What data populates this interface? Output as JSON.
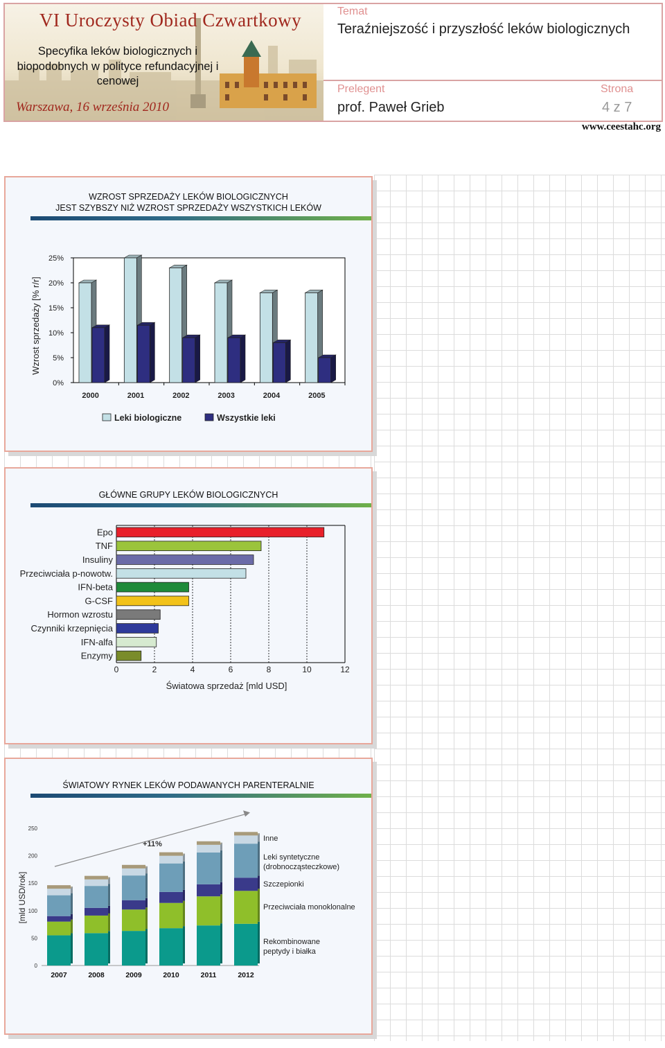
{
  "header": {
    "event_title": "VI Uroczysty Obiad Czwartkowy",
    "topic": "Specyfika leków biologicznych i biopodobnych w polityce refundacyjnej i cenowej",
    "place_date": "Warszawa, 16 września 2010",
    "temat_label": "Temat",
    "temat_value": "Teraźniejszość i przyszłość leków biologicznych",
    "prelegent_label": "Prelegent",
    "prelegent_value": "prof. Paweł Grieb",
    "strona_label": "Strona",
    "strona_value": "4 z 7",
    "url": "www.ceestahc.org"
  },
  "colors": {
    "accent": "#e09090",
    "border": "#d9a3a3",
    "title_red": "#a0281e"
  },
  "chart_data": [
    {
      "type": "bar",
      "title_line1": "WZROST SPRZEDAŻY LEKÓW BIOLOGICZNYCH",
      "title_line2": "JEST SZYBSZY NIŻ WZROST SPRZEDAŻY WSZYSTKICH LEKÓW",
      "categories": [
        "2000",
        "2001",
        "2002",
        "2003",
        "2004",
        "2005"
      ],
      "series": [
        {
          "name": "Leki biologiczne",
          "color": "#c3e0e6",
          "values": [
            20,
            25,
            23,
            20,
            18,
            18
          ]
        },
        {
          "name": "Wszystkie leki",
          "color": "#2e2e80",
          "values": [
            11,
            11.5,
            9,
            9,
            8,
            5
          ]
        }
      ],
      "ylabel": "Wzrost sprzedaży [% r/r]",
      "yticks": [
        "0%",
        "5%",
        "10%",
        "15%",
        "20%",
        "25%"
      ],
      "ylim": [
        0,
        25
      ],
      "legend": "bottom"
    },
    {
      "type": "bar",
      "orientation": "horizontal",
      "title": "GŁÓWNE GRUPY LEKÓW BIOLOGICZNYCH",
      "categories": [
        "Epo",
        "TNF",
        "Insuliny",
        "Przeciwciała p-nowotw.",
        "IFN-beta",
        "G-CSF",
        "Hormon wzrostu",
        "Czynniki krzepnięcia",
        "IFN-alfa",
        "Enzymy"
      ],
      "values": [
        10.9,
        7.6,
        7.2,
        6.8,
        3.8,
        3.8,
        2.3,
        2.2,
        2.1,
        1.3
      ],
      "colors": [
        "#e8202a",
        "#9bc43c",
        "#6b6ba8",
        "#c3e0e6",
        "#1e8a3a",
        "#f2c21a",
        "#7a7a7a",
        "#2e3a9a",
        "#d6ead0",
        "#7a8c2a"
      ],
      "xlabel": "Światowa sprzedaż [mld USD]",
      "xticks": [
        "0",
        "2",
        "4",
        "6",
        "8",
        "10",
        "12"
      ],
      "xlim": [
        0,
        12
      ]
    },
    {
      "type": "bar",
      "stacked": true,
      "title": "ŚWIATOWY RYNEK LEKÓW PODAWANYCH PARENTERALNIE",
      "categories": [
        "2007",
        "2008",
        "2009",
        "2010",
        "2011",
        "2012"
      ],
      "ylabel": "[mld USD/rok]",
      "yticks": [
        "0",
        "50",
        "100",
        "150",
        "200",
        "250"
      ],
      "ylim": [
        0,
        250
      ],
      "annotation": "+11%",
      "series": [
        {
          "name": "Rekombinowane peptydy i białka",
          "color": "#0b9a8c",
          "values": [
            55,
            59,
            63,
            68,
            73,
            76
          ]
        },
        {
          "name": "Przeciwciała monoklonalne",
          "color": "#8fbf2a",
          "values": [
            25,
            32,
            39,
            46,
            53,
            60
          ]
        },
        {
          "name": "Szczepionki",
          "color": "#3a3a8a",
          "values": [
            10,
            14,
            17,
            20,
            22,
            24
          ]
        },
        {
          "name": "Leki syntetyczne (drobnocząsteczkowe)",
          "color": "#6e9eb8",
          "values": [
            38,
            40,
            45,
            52,
            58,
            62
          ]
        },
        {
          "name": "Inne",
          "color": "#c8d8e4",
          "values": [
            12,
            12,
            13,
            14,
            14,
            15
          ]
        }
      ],
      "legend": "right"
    }
  ]
}
